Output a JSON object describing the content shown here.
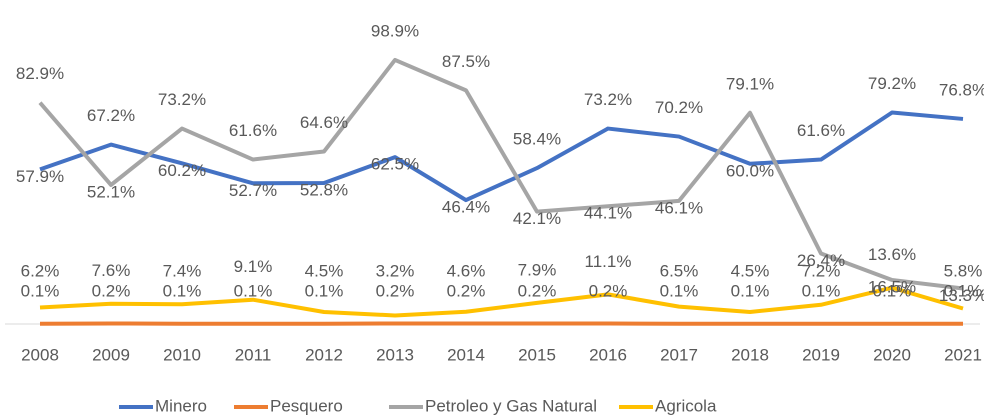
{
  "chart_data": {
    "type": "line",
    "categories": [
      "2008",
      "2009",
      "2010",
      "2011",
      "2012",
      "2013",
      "2014",
      "2015",
      "2016",
      "2017",
      "2018",
      "2019",
      "2020",
      "2021"
    ],
    "ylim": [
      0,
      100
    ],
    "legend": "bottom",
    "series": [
      {
        "name": "Minero",
        "color": "#4472c4",
        "values": [
          57.9,
          67.2,
          60.2,
          52.7,
          52.8,
          62.5,
          46.4,
          58.4,
          73.2,
          70.2,
          60.0,
          61.6,
          79.2,
          76.8
        ],
        "value_labels": [
          "57.9%",
          "67.2%",
          "60.2%",
          "52.7%",
          "52.8%",
          "62.5%",
          "46.4%",
          "58.4%",
          "73.2%",
          "70.2%",
          "60.0%",
          "61.6%",
          "79.2%",
          "76.8%"
        ]
      },
      {
        "name": "Pesquero",
        "color": "#ed7d31",
        "values": [
          0.1,
          0.2,
          0.1,
          0.1,
          0.1,
          0.2,
          0.2,
          0.2,
          0.2,
          0.1,
          0.1,
          0.1,
          0.1,
          0.1
        ],
        "value_labels": [
          "0.1%",
          "0.2%",
          "0.1%",
          "0.1%",
          "0.1%",
          "0.2%",
          "0.2%",
          "0.2%",
          "0.2%",
          "0.1%",
          "0.1%",
          "0.1%",
          "0.1%",
          "0.1%"
        ]
      },
      {
        "name": "Petroleo y Gas Natural",
        "color": "#a5a5a5",
        "values": [
          82.9,
          52.1,
          73.2,
          61.6,
          64.6,
          98.9,
          87.5,
          42.1,
          44.1,
          46.1,
          79.1,
          26.4,
          16.5,
          13.3
        ],
        "value_labels": [
          "82.9%",
          "52.1%",
          "73.2%",
          "61.6%",
          "64.6%",
          "98.9%",
          "87.5%",
          "42.1%",
          "44.1%",
          "46.1%",
          "79.1%",
          "26.4%",
          "16.5%",
          "13.3%"
        ]
      },
      {
        "name": "Agricola",
        "color": "#ffc000",
        "values": [
          6.2,
          7.6,
          7.4,
          9.1,
          4.5,
          3.2,
          4.6,
          7.9,
          11.1,
          6.5,
          4.5,
          7.2,
          13.6,
          5.8
        ],
        "value_labels": [
          "6.2%",
          "7.6%",
          "7.4%",
          "9.1%",
          "4.5%",
          "3.2%",
          "4.6%",
          "7.9%",
          "11.1%",
          "6.5%",
          "4.5%",
          "7.2%",
          "13.6%",
          "5.8%"
        ]
      }
    ]
  }
}
